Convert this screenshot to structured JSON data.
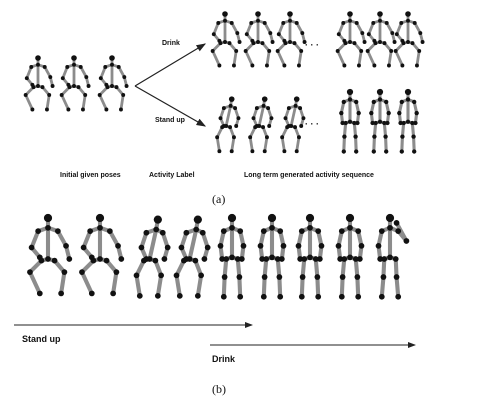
{
  "panel_a": {
    "label_drink": "Drink",
    "label_stand_up": "Stand up",
    "ellipsis_top": "· · ·",
    "ellipsis_bottom": "· · ·",
    "caption_initial": "Initial given poses",
    "caption_activity": "Activity Label",
    "caption_sequence": "Long term generated activity sequence",
    "panel_caption": "(a)"
  },
  "panel_b": {
    "label_stand_up": "Stand up",
    "label_drink": "Drink",
    "panel_caption": "(b)"
  },
  "colors": {
    "bone": "#8c8c8c",
    "joint": "#111111",
    "arrow": "#222222",
    "text": "#111111"
  }
}
